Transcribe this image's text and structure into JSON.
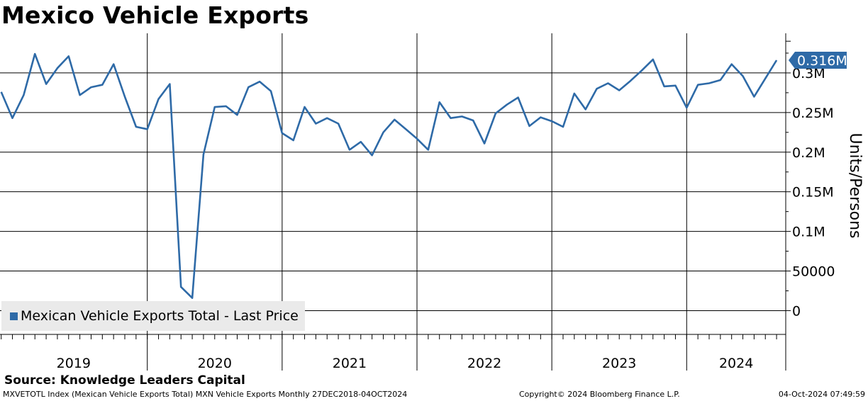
{
  "chart_data": {
    "type": "line",
    "title": "Mexico Vehicle Exports",
    "ylabel": "Units/Persons",
    "xlabel": "",
    "ylim": [
      -30000,
      350000
    ],
    "yticks": [
      {
        "value": 300000,
        "label": "0.3M"
      },
      {
        "value": 250000,
        "label": "0.25M"
      },
      {
        "value": 200000,
        "label": "0.2M"
      },
      {
        "value": 150000,
        "label": "0.15M"
      },
      {
        "value": 100000,
        "label": "0.1M"
      },
      {
        "value": 50000,
        "label": "50000"
      },
      {
        "value": 0,
        "label": "0"
      }
    ],
    "year_labels": [
      "2019",
      "2020",
      "2021",
      "2022",
      "2023",
      "2024"
    ],
    "start": "2018-12",
    "series": [
      {
        "name": "Mexican Vehicle Exports Total - Last Price",
        "color": "#2e6aa7",
        "values": [
          276000,
          243000,
          272000,
          324000,
          286000,
          306000,
          321000,
          272000,
          282000,
          285000,
          311000,
          270000,
          232000,
          229000,
          267000,
          286000,
          30000,
          16000,
          197000,
          257000,
          258000,
          247000,
          282000,
          289000,
          277000,
          224000,
          215000,
          257000,
          236000,
          243000,
          236000,
          203000,
          213000,
          196000,
          225000,
          241000,
          229000,
          217000,
          203000,
          263000,
          243000,
          245000,
          240000,
          211000,
          249000,
          260000,
          269000,
          233000,
          244000,
          239000,
          232000,
          274000,
          254000,
          280000,
          287000,
          278000,
          290000,
          303000,
          317000,
          283000,
          284000,
          256000,
          285000,
          287000,
          291000,
          311000,
          296000,
          270000,
          293000,
          316000
        ]
      }
    ],
    "last_value_label": "0.316M"
  },
  "legend": {
    "label": "Mexican Vehicle Exports Total - Last Price"
  },
  "source": "Source: Knowledge Leaders Capital",
  "footer": {
    "left": "MXVETOTL Index (Mexican Vehicle Exports Total) MXN Vehicle Exports  Monthly 27DEC2018-04OCT2024",
    "middle": "Copyright© 2024 Bloomberg Finance L.P.",
    "right": "04-Oct-2024 07:49:59"
  }
}
